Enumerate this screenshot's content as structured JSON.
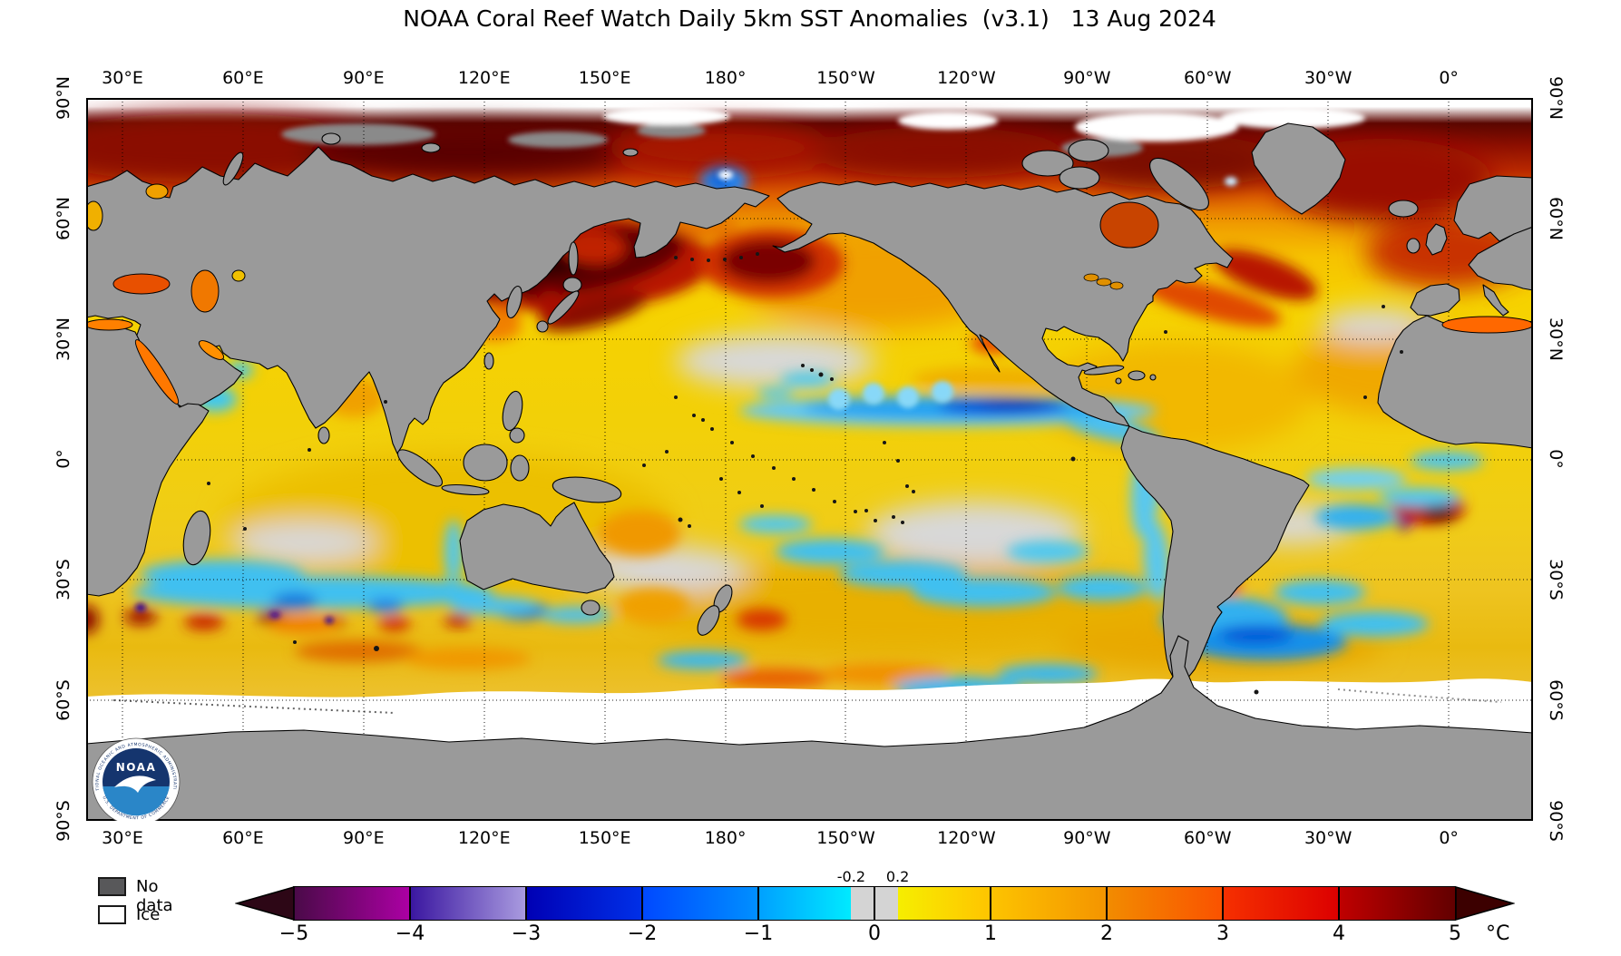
{
  "title": "NOAA Coral Reef Watch Daily 5km SST Anomalies  (v3.1)   13 Aug 2024",
  "axes": {
    "lon_labels": [
      "30°E",
      "60°E",
      "90°E",
      "120°E",
      "150°E",
      "180°",
      "150°W",
      "120°W",
      "90°W",
      "60°W",
      "30°W",
      "0°"
    ],
    "lat_labels_left": [
      "90°N",
      "60°N",
      "30°N",
      "0°",
      "30°S",
      "60°S",
      "90°S"
    ],
    "lat_labels_right": [
      "90°N",
      "60°N",
      "30°N",
      "0°",
      "30°S",
      "60°S",
      "90°S"
    ]
  },
  "legend": {
    "no_data_label": "No data",
    "no_data_color": "#58585a",
    "ice_label": "Ice",
    "ice_color": "#ffffff"
  },
  "colorbar": {
    "units_label": "°C",
    "ticks": [
      "−5",
      "−4",
      "−3",
      "−2",
      "−1",
      "0",
      "1",
      "2",
      "3",
      "4",
      "5"
    ],
    "inner_ticks": [
      "-0.2",
      "0.2"
    ],
    "inner_tick_values": [
      -0.2,
      0.2
    ],
    "segments": [
      {
        "from": -5,
        "to": -4,
        "start": "#4a0a48",
        "end": "#ac00a4"
      },
      {
        "from": -4,
        "to": -3,
        "start": "#3a16a0",
        "end": "#aa9ce0"
      },
      {
        "from": -3,
        "to": -2,
        "start": "#0000b4",
        "end": "#0030e8"
      },
      {
        "from": -2,
        "to": -1,
        "start": "#0048ff",
        "end": "#0090ff"
      },
      {
        "from": -1,
        "to": -0.2,
        "start": "#00a0ff",
        "end": "#00eaff"
      },
      {
        "from": -0.2,
        "to": 0.2,
        "start": "#d4d4d4",
        "end": "#d4d4d4"
      },
      {
        "from": 0.2,
        "to": 1,
        "start": "#f6ee00",
        "end": "#ffc400"
      },
      {
        "from": 1,
        "to": 2,
        "start": "#fdc400",
        "end": "#f49400"
      },
      {
        "from": 2,
        "to": 3,
        "start": "#f28c00",
        "end": "#fa5200"
      },
      {
        "from": 3,
        "to": 4,
        "start": "#f63000",
        "end": "#dc0000"
      },
      {
        "from": 4,
        "to": 5,
        "start": "#c00000",
        "end": "#620000"
      }
    ],
    "under_arrow_color": "#2d0716",
    "over_arrow_color": "#3c0000"
  },
  "map_palette": {
    "land_color": "#9a9a9a",
    "coast_color": "#000000",
    "ice_color": "#ffffff",
    "no_data_color": "#8a8a8a"
  },
  "logo": {
    "name_label": "NOAA",
    "arc_top_label": "NATIONAL OCEANIC AND ATMOSPHERIC ADMINISTRATION",
    "arc_bottom_label": "U.S. DEPARTMENT OF COMMERCE"
  }
}
